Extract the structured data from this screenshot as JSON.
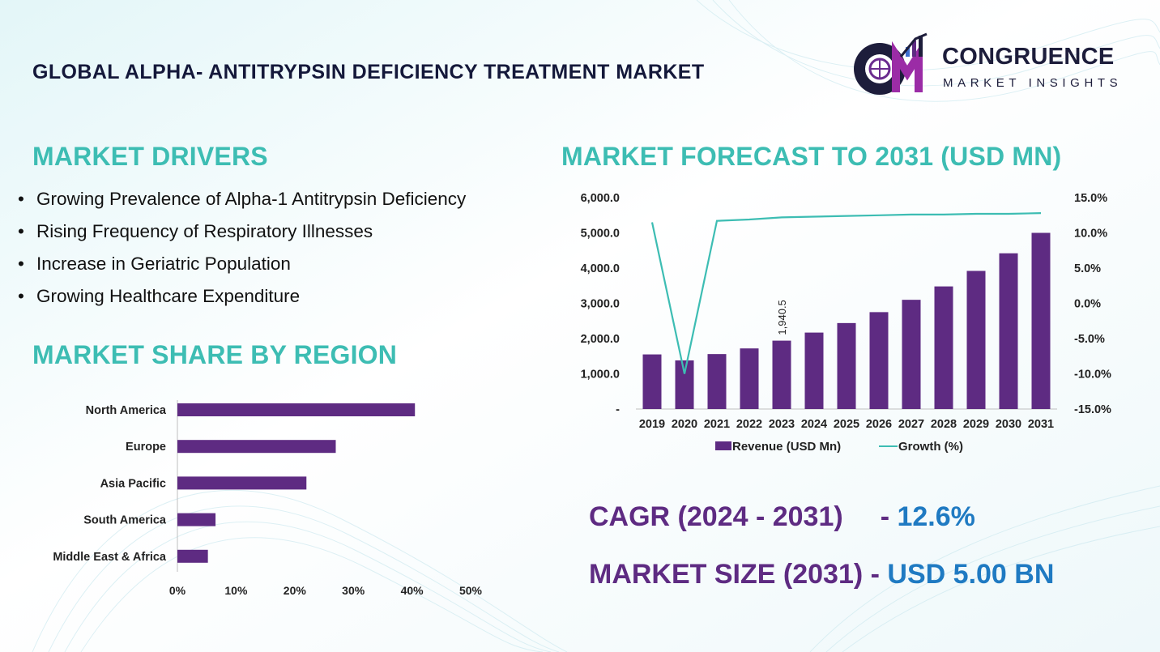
{
  "title": "GLOBAL ALPHA- ANTITRYPSIN DEFICIENCY TREATMENT MARKET",
  "logo": {
    "brand": "CONGRUENCE",
    "tagline": "MARKET INSIGHTS",
    "icon": "cm-logo-icon"
  },
  "drivers": {
    "heading": "MARKET DRIVERS",
    "bullet": "•",
    "items": [
      "Growing Prevalence of Alpha-1 Antitrypsin Deficiency",
      "Rising Frequency of Respiratory Illnesses",
      "Increase in Geriatric Population",
      "Growing Healthcare Expenditure"
    ]
  },
  "region_section": {
    "heading": "MARKET SHARE BY REGION"
  },
  "forecast_section": {
    "heading": "MARKET FORECAST TO 2031 (USD MN)"
  },
  "summary": {
    "cagr_label": "CAGR (2024 - 2031)",
    "cagr_sep": "- ",
    "cagr_value": "12.6%",
    "size_label": "MARKET SIZE (2031)",
    "size_sep": "- ",
    "size_value": "USD 5.00 BN"
  },
  "colors": {
    "bar": "#5e2b82",
    "line": "#3dbdb3",
    "heading": "#3dbdb3",
    "title": "#14183a",
    "accent_blue": "#1f7ac2"
  },
  "chart_data": [
    {
      "type": "bar",
      "orientation": "horizontal",
      "categories": [
        "North America",
        "Europe",
        "Asia Pacific",
        "South America",
        "Middle East & Africa"
      ],
      "values": [
        40.5,
        27,
        22,
        6.5,
        5.2
      ],
      "xlim": [
        0,
        50
      ],
      "xticks": [
        "0%",
        "10%",
        "20%",
        "30%",
        "40%",
        "50%"
      ],
      "grid": false,
      "color": "#5e2b82"
    },
    {
      "type": "bar+line",
      "categories": [
        "2019",
        "2020",
        "2021",
        "2022",
        "2023",
        "2024",
        "2025",
        "2026",
        "2027",
        "2028",
        "2029",
        "2030",
        "2031"
      ],
      "series": [
        {
          "name": "Revenue (USD Mn)",
          "type": "bar",
          "axis": "left",
          "values": [
            1550,
            1380,
            1560,
            1720,
            1940.5,
            2170,
            2440,
            2750,
            3100,
            3480,
            3920,
            4420,
            5000
          ],
          "color": "#5e2b82"
        },
        {
          "name": "Growth (%)",
          "type": "line",
          "axis": "right",
          "values": [
            11.5,
            -10.0,
            11.7,
            11.9,
            12.2,
            12.3,
            12.4,
            12.5,
            12.6,
            12.6,
            12.7,
            12.7,
            12.8
          ],
          "color": "#3dbdb3"
        }
      ],
      "data_labels": [
        {
          "index": 4,
          "text": "1,940.5"
        }
      ],
      "left_axis": {
        "ylim": [
          0,
          6000
        ],
        "ticks": [
          "-",
          "1,000.0",
          "2,000.0",
          "3,000.0",
          "4,000.0",
          "5,000.0",
          "6,000.0"
        ]
      },
      "right_axis": {
        "ylim": [
          -15,
          15
        ],
        "ticks": [
          "-15.0%",
          "-10.0%",
          "-5.0%",
          "0.0%",
          "5.0%",
          "10.0%",
          "15.0%"
        ]
      },
      "legend": "bottom",
      "grid": false
    }
  ]
}
